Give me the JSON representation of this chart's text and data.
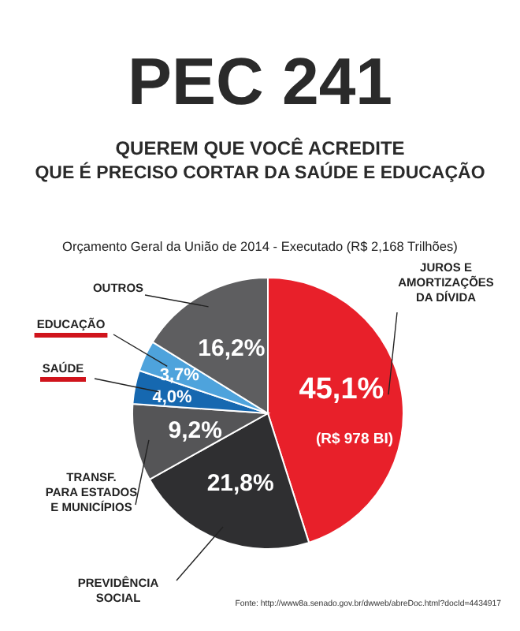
{
  "chart_data": {
    "type": "pie",
    "title": "PEC 241",
    "subtitle": "QUEREM QUE VOCÊ ACREDITE\nQUE É PRECISO CORTAR DA SAÚDE E EDUCAÇÃO",
    "categories": [
      "JUROS E\nAMORTIZAÇÕES\nDA DÍVIDA",
      "PREVIDÊNCIA\nSOCIAL",
      "TRANSF.\nPARA ESTADOS\nE MUNICÍPIOS",
      "SAÚDE",
      "EDUCAÇÃO",
      "OUTROS"
    ],
    "values": [
      45.1,
      21.8,
      9.2,
      4.0,
      3.7,
      16.2
    ],
    "colors": [
      "#e8202a",
      "#2f2f31",
      "#555557",
      "#1668b0",
      "#4ea3dc",
      "#5e5e60"
    ],
    "value_labels": [
      "45,1%",
      "21,8%",
      "9,2%",
      "4,0%",
      "3,7%",
      "16,2%"
    ],
    "annotations": [
      "Orçamento Geral da União de 2014 - Executado (R$ 2,168 Trilhões)",
      "(R$ 978 BI)",
      "Fonte: http://www8a.senado.gov.br/dwweb/abreDoc.html?docId=4434917"
    ]
  }
}
